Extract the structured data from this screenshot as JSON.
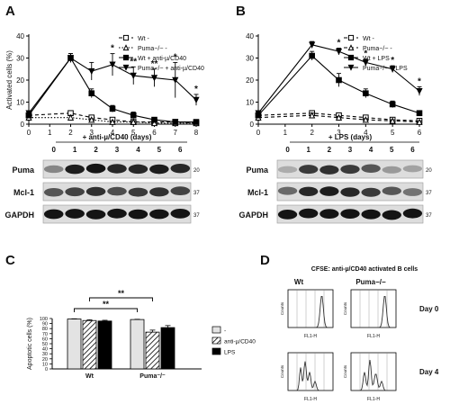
{
  "panel_letters": [
    "A",
    "B",
    "C",
    "D"
  ],
  "chart_data": [
    {
      "panel": "A",
      "type": "line",
      "ylabel": "Activated cells (%)",
      "x": [
        0,
        1,
        2,
        3,
        4,
        5,
        6,
        7,
        8
      ],
      "xlim": [
        0,
        8
      ],
      "ylim": [
        0,
        40
      ],
      "yticks": [
        0,
        10,
        20,
        30,
        40
      ],
      "series": [
        {
          "name": "Wt -",
          "style": "dash",
          "marker": "open-square",
          "x": [
            0,
            2,
            3,
            4,
            5,
            6,
            7,
            8
          ],
          "values": [
            4,
            5,
            3,
            2,
            1,
            1,
            1,
            0.5
          ],
          "err": [
            0.5,
            1,
            0.8,
            0.5,
            0.5,
            0.5,
            0.5,
            0.5
          ]
        },
        {
          "name": "Puma-/- -",
          "style": "dot",
          "marker": "open-triangle",
          "x": [
            0,
            2,
            3,
            4,
            5,
            6,
            7,
            8
          ],
          "values": [
            3,
            3,
            2,
            1,
            1,
            0.5,
            0.5,
            0.5
          ],
          "err": [
            0.5,
            1,
            0.5,
            0.5,
            0.5,
            0.5,
            0.5,
            0.5
          ]
        },
        {
          "name": "Wt + anti-µ/CD40",
          "style": "solid",
          "marker": "filled-square",
          "x": [
            0,
            2,
            3,
            4,
            5,
            6,
            7,
            8
          ],
          "values": [
            4,
            30,
            14,
            7,
            4,
            2,
            1,
            1
          ],
          "err": [
            0.5,
            2,
            2,
            1.5,
            1.5,
            1,
            0.5,
            0.5
          ]
        },
        {
          "name": "Puma-/- + anti-µ/CD40",
          "style": "solid",
          "marker": "filled-triangle-down",
          "x": [
            0,
            2,
            3,
            4,
            5,
            6,
            7,
            8
          ],
          "values": [
            5,
            30,
            24,
            27,
            22,
            21,
            20,
            11
          ],
          "err": [
            0.5,
            2,
            4,
            5,
            4,
            4,
            8,
            2.5
          ]
        }
      ],
      "significance": [
        {
          "x": 4,
          "label": "*"
        },
        {
          "x": 5,
          "label": "**"
        },
        {
          "x": 6,
          "label": "**"
        },
        {
          "x": 7,
          "label": "*"
        },
        {
          "x": 8,
          "label": "*"
        }
      ]
    },
    {
      "panel": "B",
      "type": "line",
      "ylabel": "",
      "x": [
        0,
        1,
        2,
        3,
        4,
        5,
        6
      ],
      "xlim": [
        0,
        6
      ],
      "ylim": [
        0,
        40
      ],
      "yticks": [
        0,
        10,
        20,
        30,
        40
      ],
      "series": [
        {
          "name": "Wt -",
          "style": "dash",
          "marker": "open-square",
          "x": [
            0,
            2,
            3,
            4,
            5,
            6
          ],
          "values": [
            4,
            5,
            4,
            3,
            2,
            1.5
          ],
          "err": [
            0.5,
            1,
            0.5,
            0.5,
            0.5,
            0.5
          ]
        },
        {
          "name": "Puma-/- -",
          "style": "dash",
          "marker": "open-triangle",
          "x": [
            0,
            2,
            3,
            4,
            5,
            6
          ],
          "values": [
            3,
            4,
            3,
            2,
            1.5,
            1
          ],
          "err": [
            0.5,
            1,
            0.5,
            0.5,
            0.5,
            0.5
          ]
        },
        {
          "name": "Wt + LPS",
          "style": "solid",
          "marker": "filled-square",
          "x": [
            0,
            2,
            3,
            4,
            5,
            6
          ],
          "values": [
            4,
            31,
            20,
            14,
            9,
            5
          ],
          "err": [
            0.5,
            2,
            3,
            2,
            1.5,
            1
          ]
        },
        {
          "name": "Puma-/- + LPS",
          "style": "solid",
          "marker": "filled-triangle-down",
          "x": [
            0,
            2,
            3,
            4,
            5,
            6
          ],
          "values": [
            5,
            36,
            33,
            28,
            25,
            15
          ],
          "err": [
            0.5,
            1.5,
            1.5,
            1.5,
            1.5,
            2
          ]
        }
      ],
      "significance": [
        {
          "x": 3,
          "label": "*"
        },
        {
          "x": 4,
          "label": "*"
        },
        {
          "x": 5,
          "label": "*"
        },
        {
          "x": 6,
          "label": "*"
        }
      ]
    },
    {
      "panel": "C",
      "type": "bar",
      "ylabel": "Apoptotic cells (%)",
      "categories": [
        "Wt",
        "Puma-/-"
      ],
      "ylim": [
        0,
        100
      ],
      "yticks": [
        0,
        10,
        20,
        30,
        40,
        50,
        60,
        70,
        80,
        90,
        100
      ],
      "series": [
        {
          "name": "-",
          "fill": "light",
          "values": [
            99,
            98
          ],
          "err": [
            0.5,
            0.5
          ]
        },
        {
          "name": "anti-µ/CD40",
          "fill": "hatch",
          "values": [
            96,
            73
          ],
          "err": [
            1.5,
            4
          ]
        },
        {
          "name": "LPS",
          "fill": "black",
          "values": [
            95,
            82
          ],
          "err": [
            1.5,
            4
          ]
        }
      ],
      "significance": [
        "**",
        "**"
      ]
    }
  ],
  "blots": {
    "A": {
      "header": "+ anti-µ/CD40 (days)",
      "lanes": [
        "0",
        "1",
        "2",
        "3",
        "4",
        "5",
        "6"
      ],
      "rows": [
        {
          "label": "Puma",
          "size": "20"
        },
        {
          "label": "Mcl-1",
          "size": "37"
        },
        {
          "label": "GAPDH",
          "size": "37"
        }
      ]
    },
    "B": {
      "header": "+ LPS (days)",
      "lanes": [
        "0",
        "1",
        "2",
        "3",
        "4",
        "5",
        "6"
      ],
      "rows": [
        {
          "label": "Puma",
          "size": "20"
        },
        {
          "label": "Mcl-1",
          "size": "37"
        },
        {
          "label": "GAPDH",
          "size": "37"
        }
      ]
    }
  },
  "flow": {
    "title": "CFSE: anti-µ/CD40 activated B cells",
    "cols": [
      "Wt",
      "Puma-/-"
    ],
    "rows": [
      "Day 0",
      "Day 4"
    ],
    "xlabel": "FL1-H",
    "ylabel": "Counts"
  }
}
